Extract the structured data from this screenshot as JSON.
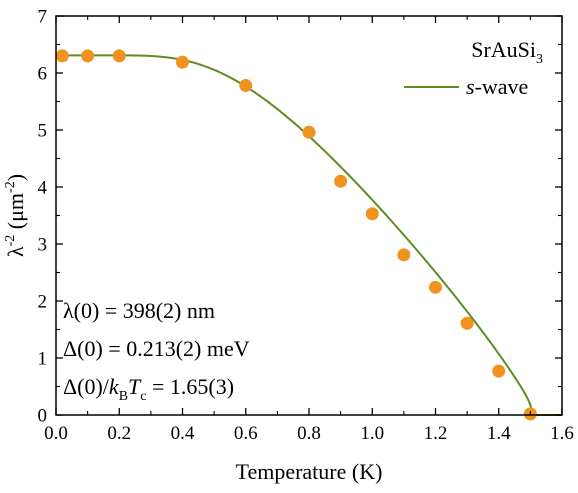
{
  "chart_data": {
    "type": "scatter",
    "xlabel": "Temperature (K)",
    "ylabel": {
      "base": "λ",
      "base_sup": "-2",
      "unit_open": " (μm",
      "unit_sup": "-2",
      "unit_close": ")"
    },
    "xlim": [
      0,
      1.6
    ],
    "ylim": [
      0,
      7
    ],
    "xticks": [
      "0.0",
      "0.2",
      "0.4",
      "0.6",
      "0.8",
      "1.0",
      "1.2",
      "1.4",
      "1.6"
    ],
    "yticks": [
      "0",
      "1",
      "2",
      "3",
      "4",
      "5",
      "6",
      "7"
    ],
    "grid": false,
    "legend": {
      "placement": "top-right",
      "title": {
        "text": "SrAuSi",
        "sub": "3"
      },
      "entries": [
        {
          "italic": "s",
          "rest": "-wave",
          "kind": "line"
        }
      ]
    },
    "series": [
      {
        "kind": "points",
        "color": "#f0921e",
        "x": [
          0.02,
          0.1,
          0.2,
          0.4,
          0.6,
          0.8,
          0.9,
          1.0,
          1.1,
          1.2,
          1.3,
          1.4,
          1.5
        ],
        "y": [
          6.3,
          6.3,
          6.3,
          6.19,
          5.78,
          4.96,
          4.1,
          3.53,
          2.81,
          2.24,
          1.61,
          0.77,
          0.02
        ]
      },
      {
        "name": "s-wave",
        "kind": "line",
        "color": "#5f8c1f",
        "model": {
          "lambda0_inv2": 6.31,
          "Tc": 1.505,
          "gap0_meV": 0.213
        }
      }
    ],
    "annotations": [
      {
        "parts": [
          {
            "t": "λ(0) = 398(2) nm"
          }
        ]
      },
      {
        "parts": [
          {
            "t": "Δ(0) = 0.213(2) meV"
          }
        ]
      },
      {
        "parts": [
          {
            "t": "Δ(0)/"
          },
          {
            "t": "k",
            "style": "italic"
          },
          {
            "t": "B",
            "style": "sub"
          },
          {
            "t": "T",
            "style": "italic"
          },
          {
            "t": "c",
            "style": "sub"
          },
          {
            "t": " = 1.65(3)"
          }
        ]
      }
    ]
  }
}
